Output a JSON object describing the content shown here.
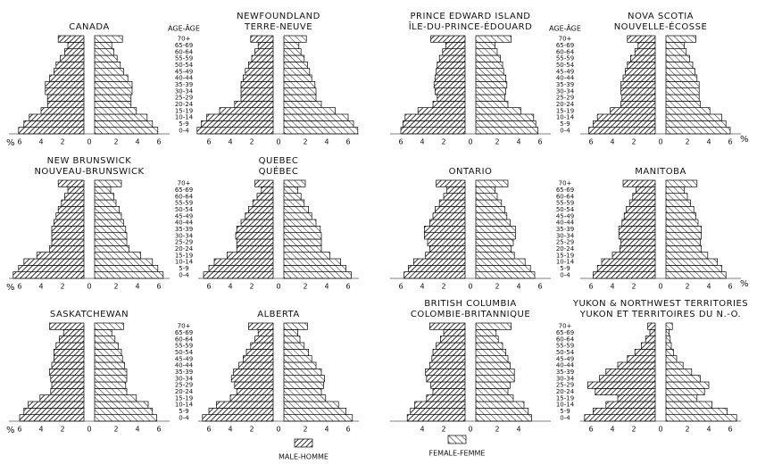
{
  "age_header": "AGE-ÂGE",
  "unit": "%",
  "legend": [
    "MALE-HOMME",
    "FEMALE-FEMME"
  ],
  "categories": [
    "0-4",
    "5-9",
    "10-14",
    "15-19",
    "20-24",
    "25-29",
    "30-34",
    "35-39",
    "40-44",
    "45-49",
    "50-54",
    "55-59",
    "60-64",
    "65-69",
    "70+"
  ],
  "chart_data": [
    {
      "type": "pyramid",
      "title": [
        "CANADA"
      ],
      "xlim": [
        0,
        7
      ],
      "xticks": [
        0,
        2,
        4,
        6
      ],
      "series": [
        {
          "values": [
            6.1,
            5.6,
            5.1,
            4.0,
            3.4,
            3.4,
            3.6,
            3.6,
            3.2,
            2.8,
            2.6,
            2.2,
            1.8,
            1.5,
            2.4
          ]
        },
        {
          "values": [
            5.9,
            5.4,
            4.9,
            3.9,
            3.4,
            3.4,
            3.5,
            3.5,
            3.1,
            2.7,
            2.4,
            2.1,
            1.8,
            1.6,
            2.6
          ]
        }
      ]
    },
    {
      "type": "pyramid",
      "title": [
        "NEWFOUNDLAND",
        "TERRE-NEUVE"
      ],
      "xlim": [
        0,
        7
      ],
      "xticks": [
        0,
        2,
        4,
        6
      ],
      "series": [
        {
          "values": [
            7.1,
            6.7,
            6.2,
            5.0,
            3.6,
            3.0,
            3.0,
            3.0,
            2.8,
            2.6,
            2.3,
            2.0,
            1.7,
            1.4,
            2.1
          ]
        },
        {
          "values": [
            6.9,
            6.5,
            6.0,
            4.8,
            3.5,
            3.0,
            3.0,
            2.9,
            2.6,
            2.4,
            2.2,
            1.9,
            1.6,
            1.4,
            2.1
          ]
        }
      ]
    },
    {
      "type": "pyramid",
      "title": [
        "PRINCE EDWARD ISLAND",
        "ÎLE-DU-PRINCE-ÉDOUARD"
      ],
      "xlim": [
        0,
        7
      ],
      "xticks": [
        0,
        2,
        4,
        6
      ],
      "series": [
        {
          "values": [
            6.0,
            5.8,
            5.6,
            4.4,
            3.0,
            2.6,
            2.8,
            2.9,
            2.8,
            2.7,
            2.6,
            2.4,
            2.1,
            1.8,
            3.2
          ]
        },
        {
          "values": [
            5.8,
            5.6,
            5.4,
            4.2,
            3.0,
            2.7,
            2.8,
            2.9,
            2.8,
            2.6,
            2.5,
            2.3,
            2.0,
            1.8,
            3.3
          ]
        }
      ]
    },
    {
      "type": "pyramid",
      "title": [
        "NOVA SCOTIA",
        "NOUVELLE-ÉCOSSE"
      ],
      "xlim": [
        0,
        7
      ],
      "xticks": [
        0,
        2,
        4,
        6
      ],
      "series": [
        {
          "values": [
            6.2,
            5.8,
            5.4,
            4.2,
            3.2,
            3.1,
            3.2,
            3.2,
            3.0,
            2.8,
            2.6,
            2.3,
            1.9,
            1.6,
            2.6
          ]
        },
        {
          "values": [
            6.0,
            5.6,
            5.2,
            4.1,
            3.2,
            3.1,
            3.1,
            3.1,
            2.9,
            2.7,
            2.5,
            2.2,
            1.9,
            1.7,
            2.8
          ]
        }
      ]
    },
    {
      "type": "pyramid",
      "title": [
        "NEW BRUNSWICK",
        "NOUVEAU-BRUNSWICK"
      ],
      "xlim": [
        0,
        7
      ],
      "xticks": [
        0,
        2,
        4,
        6
      ],
      "series": [
        {
          "values": [
            6.6,
            6.1,
            5.6,
            4.4,
            3.2,
            3.0,
            3.0,
            3.0,
            2.8,
            2.6,
            2.4,
            2.1,
            1.8,
            1.5,
            2.4
          ]
        },
        {
          "values": [
            6.4,
            5.9,
            5.4,
            4.3,
            3.2,
            3.0,
            3.0,
            2.9,
            2.7,
            2.5,
            2.3,
            2.0,
            1.8,
            1.5,
            2.5
          ]
        }
      ]
    },
    {
      "type": "pyramid",
      "title": [
        "QUEBEC",
        "QUÉBEC"
      ],
      "xlim": [
        0,
        7
      ],
      "xticks": [
        0,
        2,
        4,
        6
      ],
      "series": [
        {
          "values": [
            6.5,
            6.0,
            5.5,
            4.3,
            3.4,
            3.4,
            3.5,
            3.4,
            3.0,
            2.6,
            2.3,
            1.9,
            1.5,
            1.1,
            1.7
          ]
        },
        {
          "values": [
            6.3,
            5.8,
            5.3,
            4.3,
            3.5,
            3.5,
            3.5,
            3.4,
            3.0,
            2.6,
            2.3,
            1.9,
            1.6,
            1.3,
            2.0
          ]
        }
      ]
    },
    {
      "type": "pyramid",
      "title": [
        "ONTARIO"
      ],
      "xlim": [
        0,
        7
      ],
      "xticks": [
        0,
        2,
        4,
        6
      ],
      "series": [
        {
          "values": [
            5.7,
            5.3,
            4.8,
            3.7,
            3.3,
            3.5,
            3.8,
            3.8,
            3.3,
            3.0,
            2.8,
            2.4,
            2.0,
            1.7,
            2.7
          ]
        },
        {
          "values": [
            5.5,
            5.1,
            4.6,
            3.6,
            3.3,
            3.5,
            3.7,
            3.7,
            3.2,
            2.9,
            2.7,
            2.4,
            2.0,
            1.8,
            3.0
          ]
        }
      ]
    },
    {
      "type": "pyramid",
      "title": [
        "MANITOBA"
      ],
      "xlim": [
        0,
        7
      ],
      "xticks": [
        0,
        2,
        4,
        6
      ],
      "series": [
        {
          "values": [
            5.8,
            5.4,
            5.0,
            4.0,
            3.3,
            3.2,
            3.4,
            3.4,
            3.1,
            2.9,
            2.7,
            2.4,
            2.1,
            1.8,
            3.0
          ]
        },
        {
          "values": [
            5.6,
            5.2,
            4.8,
            3.9,
            3.3,
            3.2,
            3.3,
            3.3,
            3.0,
            2.8,
            2.6,
            2.3,
            2.0,
            1.7,
            2.9
          ]
        }
      ]
    },
    {
      "type": "pyramid",
      "title": [
        "SASKATCHEWAN"
      ],
      "xlim": [
        0,
        7
      ],
      "xticks": [
        0,
        2,
        4,
        6
      ],
      "series": [
        {
          "values": [
            6.0,
            5.6,
            5.2,
            4.1,
            3.1,
            3.0,
            3.1,
            3.2,
            3.0,
            2.8,
            2.8,
            2.6,
            2.3,
            1.9,
            3.2
          ]
        },
        {
          "values": [
            5.8,
            5.4,
            5.0,
            3.9,
            3.0,
            2.9,
            3.0,
            3.0,
            2.8,
            2.6,
            2.5,
            2.2,
            1.9,
            1.6,
            2.7
          ]
        }
      ]
    },
    {
      "type": "pyramid",
      "title": [
        "ALBERTA"
      ],
      "xlim": [
        0,
        7
      ],
      "xticks": [
        0,
        2,
        4,
        6
      ],
      "series": [
        {
          "values": [
            6.6,
            6.0,
            5.3,
            4.0,
            3.4,
            3.6,
            3.9,
            3.7,
            3.2,
            2.8,
            2.5,
            2.1,
            1.7,
            1.4,
            2.3
          ]
        },
        {
          "values": [
            6.4,
            5.8,
            5.1,
            3.9,
            3.5,
            3.7,
            3.8,
            3.5,
            3.0,
            2.6,
            2.3,
            1.9,
            1.5,
            1.3,
            2.2
          ]
        }
      ]
    },
    {
      "type": "pyramid",
      "title": [
        "BRITISH COLUMBIA",
        "COLOMBIE-BRITANNIQUE"
      ],
      "xlim": [
        0,
        7
      ],
      "xticks": [
        0,
        2,
        4
      ],
      "series": [
        {
          "values": [
            5.4,
            5.1,
            4.7,
            3.6,
            3.0,
            3.2,
            3.6,
            3.7,
            3.3,
            3.1,
            3.0,
            2.7,
            2.3,
            2.0,
            3.3
          ]
        },
        {
          "values": [
            5.2,
            4.9,
            4.5,
            3.5,
            3.0,
            3.2,
            3.6,
            3.6,
            3.2,
            3.0,
            2.8,
            2.5,
            2.1,
            1.9,
            3.3
          ]
        }
      ]
    },
    {
      "type": "pyramid",
      "title": [
        "YUKON & NORTHWEST TERRITORIES",
        "YUKON ET TERRITOIRES DU N.-O."
      ],
      "xlim": [
        0,
        7
      ],
      "xticks": [
        0,
        2,
        4,
        6
      ],
      "series": [
        {
          "values": [
            6.6,
            5.8,
            4.6,
            3.5,
            5.6,
            6.3,
            5.2,
            4.6,
            3.5,
            2.6,
            1.9,
            1.3,
            0.9,
            0.5,
            0.7
          ]
        },
        {
          "values": [
            6.6,
            5.7,
            4.3,
            2.9,
            3.6,
            4.0,
            3.2,
            2.4,
            1.6,
            1.0,
            0.7,
            0.5,
            0.4,
            0.3,
            0.6
          ]
        }
      ]
    }
  ]
}
